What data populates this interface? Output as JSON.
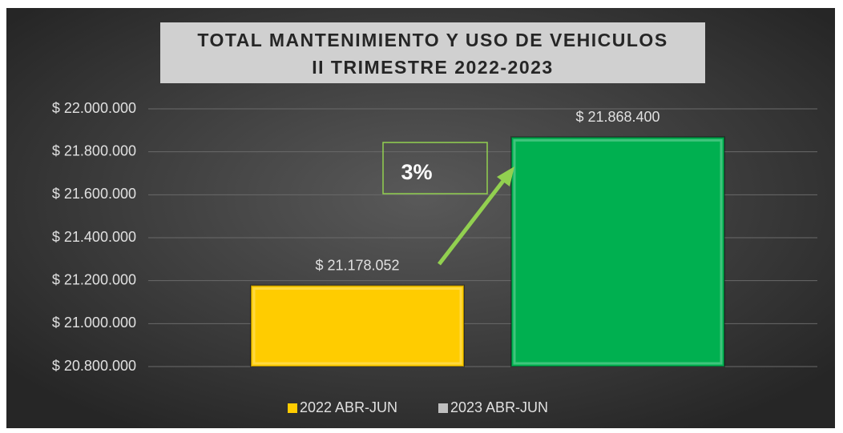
{
  "chart_data": {
    "type": "bar",
    "title": [
      "TOTAL MANTENIMIENTO Y USO DE VEHICULOS",
      "II TRIMESTRE 2022-2023"
    ],
    "series": [
      {
        "name": "2022 ABR-JUN",
        "color": "#ffcc00",
        "legend_color": "#ffcc00",
        "values": [
          21178052
        ],
        "value_labels": [
          "$ 21.178.052"
        ]
      },
      {
        "name": "2023 ABR-JUN",
        "color": "#00b050",
        "legend_color": "#bfbfbf",
        "values": [
          21868400
        ],
        "value_labels": [
          "$ 21.868.400"
        ]
      }
    ],
    "ylim": [
      20800000,
      22000000
    ],
    "yticks": [
      {
        "value": 20800000,
        "label": "$ 20.800.000"
      },
      {
        "value": 21000000,
        "label": "$ 21.000.000"
      },
      {
        "value": 21200000,
        "label": "$ 21.200.000"
      },
      {
        "value": 21400000,
        "label": "$ 21.400.000"
      },
      {
        "value": 21600000,
        "label": "$ 21.600.000"
      },
      {
        "value": 21800000,
        "label": "$ 21.800.000"
      },
      {
        "value": 22000000,
        "label": "$ 22.000.000"
      }
    ],
    "grid": true,
    "legend": "bottom",
    "annotations": [
      {
        "text": "3%"
      }
    ]
  }
}
